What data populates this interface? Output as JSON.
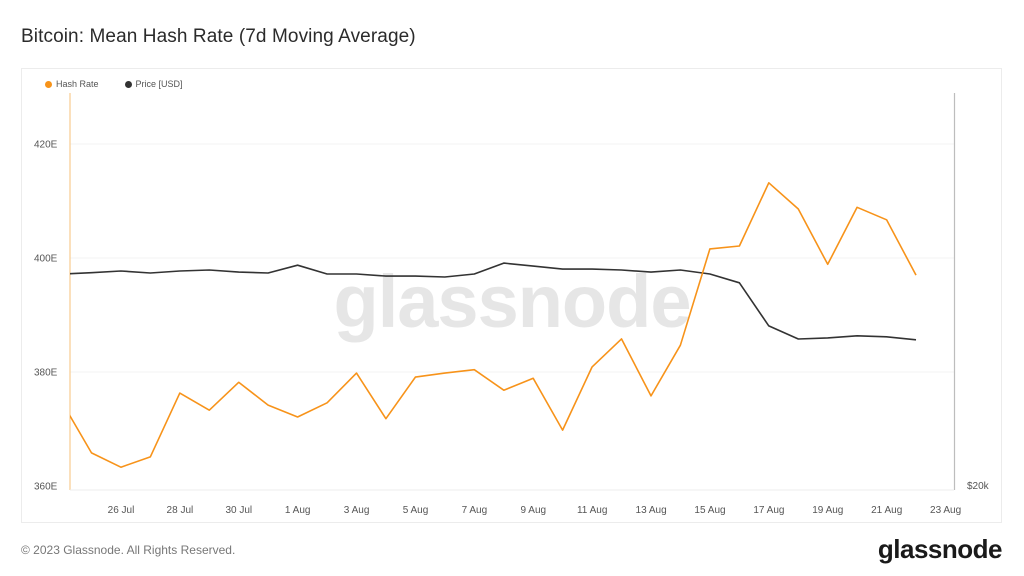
{
  "title": "Bitcoin: Mean Hash Rate (7d Moving Average)",
  "legend": [
    {
      "label": "Hash Rate",
      "color": "#f7931a"
    },
    {
      "label": "Price [USD]",
      "color": "#333333"
    }
  ],
  "watermark": "glassnode",
  "footer": "© 2023 Glassnode. All Rights Reserved.",
  "brand": "glassnode",
  "chart_data": {
    "type": "line",
    "title": "Bitcoin: Mean Hash Rate (7d Moving Average)",
    "xlabel": "",
    "ylabel": "Hash Rate (E)",
    "y2label": "Price [USD]",
    "ylim": [
      360,
      430
    ],
    "y_ticks": [
      "360E",
      "380E",
      "400E",
      "420E"
    ],
    "y2_ticks": [
      "$20k"
    ],
    "y2_scale": "log",
    "x_ticks": [
      "26 Jul",
      "28 Jul",
      "30 Jul",
      "1 Aug",
      "3 Aug",
      "5 Aug",
      "7 Aug",
      "9 Aug",
      "11 Aug",
      "13 Aug",
      "15 Aug",
      "17 Aug",
      "19 Aug",
      "21 Aug",
      "23 Aug"
    ],
    "grid": true,
    "legend_position": "top-left",
    "x": [
      "24 Jul",
      "25 Jul",
      "26 Jul",
      "27 Jul",
      "28 Jul",
      "29 Jul",
      "30 Jul",
      "31 Jul",
      "1 Aug",
      "2 Aug",
      "3 Aug",
      "4 Aug",
      "5 Aug",
      "6 Aug",
      "7 Aug",
      "8 Aug",
      "9 Aug",
      "10 Aug",
      "11 Aug",
      "12 Aug",
      "13 Aug",
      "14 Aug",
      "15 Aug",
      "16 Aug",
      "17 Aug",
      "18 Aug",
      "19 Aug",
      "20 Aug",
      "21 Aug",
      "22 Aug"
    ],
    "series": [
      {
        "name": "Hash Rate",
        "unit": "E",
        "color": "#f7931a",
        "axis": "left",
        "values": [
          374.7,
          365.8,
          363.3,
          365.1,
          376.3,
          373.3,
          378.2,
          374.2,
          372.1,
          374.6,
          379.8,
          371.8,
          379.1,
          379.8,
          380.4,
          376.8,
          378.9,
          369.8,
          380.9,
          385.8,
          375.8,
          384.7,
          401.6,
          402.1,
          413.2,
          408.6,
          398.9,
          408.9,
          406.7,
          397.0
        ]
      },
      {
        "name": "Price [USD]",
        "unit": "USD (thousands)",
        "color": "#333333",
        "axis": "right",
        "values": [
          29.28,
          29.35,
          29.44,
          29.33,
          29.44,
          29.49,
          29.38,
          29.33,
          29.75,
          29.28,
          29.28,
          29.17,
          29.17,
          29.12,
          29.28,
          29.86,
          29.7,
          29.54,
          29.54,
          29.49,
          29.38,
          29.49,
          29.28,
          28.82,
          26.66,
          26.04,
          26.09,
          26.19,
          26.14,
          26.0
        ]
      }
    ]
  }
}
